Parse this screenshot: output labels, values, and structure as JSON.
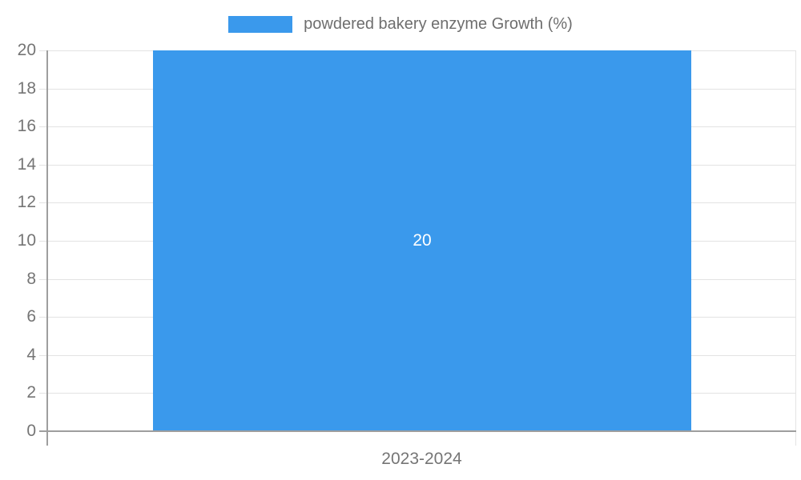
{
  "legend": {
    "swatch_color": "#3a99ec",
    "label": "powdered bakery enzyme Growth (%)"
  },
  "chart_data": {
    "type": "bar",
    "title": "",
    "xlabel": "",
    "ylabel": "",
    "categories": [
      "2023-2024"
    ],
    "series": [
      {
        "name": "powdered bakery enzyme Growth (%)",
        "values": [
          20
        ]
      }
    ],
    "values": [
      20
    ],
    "bar_labels": [
      "20"
    ],
    "ylim": [
      0,
      20
    ],
    "ytick_step": 2,
    "yticks_desc": [
      "20",
      "18",
      "16",
      "14",
      "12",
      "10",
      "8",
      "6",
      "4",
      "2",
      "0"
    ],
    "grid": true,
    "legend_position": "top",
    "bar_color": "#3a99ec",
    "bar_label_color": "#ffffff",
    "axis_color": "#9e9e9e",
    "grid_color": "#e3e3e3",
    "tick_text_color": "#757575"
  }
}
